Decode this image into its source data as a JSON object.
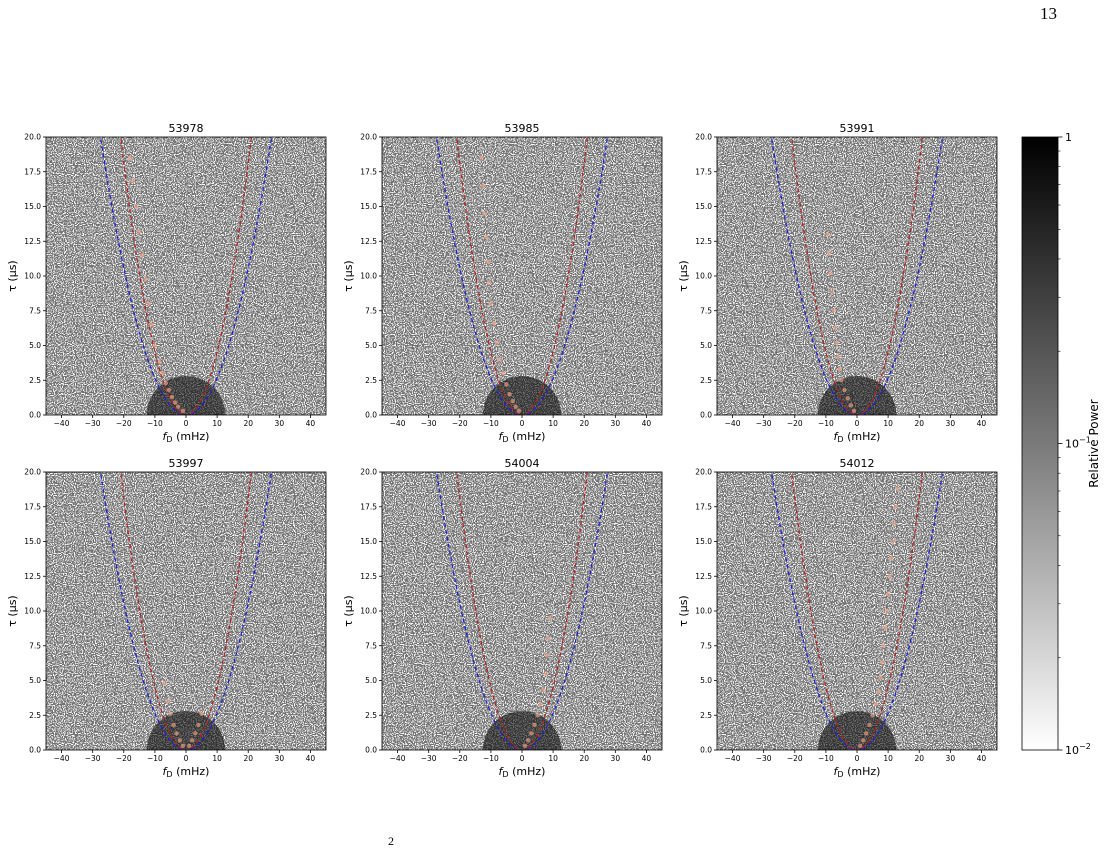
{
  "page": {
    "number": "13",
    "footer_fragment": "2"
  },
  "colors": {
    "background": "#ffffff",
    "ink": "#000000",
    "blue_curve": "#1f1fd6",
    "red_curve": "#b22222",
    "points": "#f4a582"
  },
  "chart_data": [
    {
      "type": "scatter",
      "title": "53978",
      "xlabel": "f_D (mHz)",
      "ylabel": "τ (μs)",
      "xlim": [
        -45,
        45
      ],
      "ylim": [
        0,
        20
      ],
      "xticks": [
        -40,
        -30,
        -20,
        -10,
        0,
        10,
        20,
        30,
        40
      ],
      "yticks": [
        "0.0",
        "2.5",
        "5.0",
        "7.5",
        "10.0",
        "12.5",
        "15.0",
        "17.5",
        "20.0"
      ],
      "curves": [
        {
          "style": "dashed",
          "color": "blue",
          "form": "parabola",
          "x_at_ymax": 27.5
        },
        {
          "style": "dashed",
          "color": "red",
          "form": "parabola",
          "x_at_ymax": 21
        }
      ],
      "points": {
        "x": [
          -1.0,
          -2.5,
          -3.5,
          -4.5,
          -5.5,
          -6.5,
          -7.5,
          -8.5,
          -10,
          -11,
          -12,
          -13,
          -14,
          -15,
          -16,
          -17,
          -18
        ],
        "y": [
          0.3,
          0.6,
          0.9,
          1.3,
          1.8,
          2.3,
          3.0,
          3.8,
          5.0,
          6.5,
          8.0,
          9.8,
          11.5,
          13.2,
          15.0,
          16.8,
          18.5
        ]
      }
    },
    {
      "type": "scatter",
      "title": "53985",
      "xlabel": "f_D (mHz)",
      "ylabel": "τ (μs)",
      "xlim": [
        -45,
        45
      ],
      "ylim": [
        0,
        20
      ],
      "xticks": [
        -40,
        -30,
        -20,
        -10,
        0,
        10,
        20,
        30,
        40
      ],
      "yticks": [
        "0.0",
        "2.5",
        "5.0",
        "7.5",
        "10.0",
        "12.5",
        "15.0",
        "17.5",
        "20.0"
      ],
      "curves": [
        {
          "style": "dashed",
          "color": "blue",
          "form": "parabola",
          "x_at_ymax": 27.5
        },
        {
          "style": "dashed",
          "color": "red",
          "form": "parabola",
          "x_at_ymax": 21
        }
      ],
      "points": {
        "x": [
          -1.0,
          -2.0,
          -3.0,
          -4.0,
          -5.0,
          -6.0,
          -7.0,
          -8.0,
          -9.0,
          -10.0,
          -10.5,
          -11.0,
          -11.5,
          -12.0,
          -12.5,
          -13.0
        ],
        "y": [
          0.3,
          0.6,
          1.0,
          1.5,
          2.2,
          3.0,
          4.0,
          5.2,
          6.6,
          8.0,
          9.5,
          11.0,
          12.8,
          14.5,
          16.5,
          18.5
        ]
      }
    },
    {
      "type": "scatter",
      "title": "53991",
      "xlabel": "f_D (mHz)",
      "ylabel": "τ (μs)",
      "xlim": [
        -45,
        45
      ],
      "ylim": [
        0,
        20
      ],
      "xticks": [
        -40,
        -30,
        -20,
        -10,
        0,
        10,
        20,
        30,
        40
      ],
      "yticks": [
        "0.0",
        "2.5",
        "5.0",
        "7.5",
        "10.0",
        "12.5",
        "15.0",
        "17.5",
        "20.0"
      ],
      "curves": [
        {
          "style": "dashed",
          "color": "blue",
          "form": "parabola",
          "x_at_ymax": 27.5
        },
        {
          "style": "dashed",
          "color": "red",
          "form": "parabola",
          "x_at_ymax": 21
        }
      ],
      "points": {
        "x": [
          -1.0,
          -2.0,
          -3.0,
          -4.0,
          -5.0,
          -5.5,
          -6.0,
          -6.5,
          -7.0,
          -7.5,
          -8.0,
          -8.5,
          -9.0,
          -9.5
        ],
        "y": [
          0.3,
          0.7,
          1.2,
          1.8,
          2.5,
          3.3,
          4.2,
          5.2,
          6.3,
          7.5,
          8.8,
          10.2,
          11.6,
          13.0
        ]
      }
    },
    {
      "type": "scatter",
      "title": "53997",
      "xlabel": "f_D (mHz)",
      "ylabel": "τ (μs)",
      "xlim": [
        -45,
        45
      ],
      "ylim": [
        0,
        20
      ],
      "xticks": [
        -40,
        -30,
        -20,
        -10,
        0,
        10,
        20,
        30,
        40
      ],
      "yticks": [
        "0.0",
        "2.5",
        "5.0",
        "7.5",
        "10.0",
        "12.5",
        "15.0",
        "17.5",
        "20.0"
      ],
      "curves": [
        {
          "style": "dashed",
          "color": "blue",
          "form": "parabola",
          "x_at_ymax": 27.5
        },
        {
          "style": "dashed",
          "color": "red",
          "form": "parabola",
          "x_at_ymax": 21
        }
      ],
      "points": {
        "x": [
          -1.0,
          -2.0,
          -3.0,
          -4.0,
          -5.0,
          -6.0,
          -7.0,
          1.0,
          2.0,
          3.0,
          4.0,
          5.0
        ],
        "y": [
          0.3,
          0.7,
          1.2,
          1.8,
          2.6,
          3.5,
          4.8,
          0.3,
          0.7,
          1.2,
          1.8,
          2.6
        ]
      }
    },
    {
      "type": "scatter",
      "title": "54004",
      "xlabel": "f_D (mHz)",
      "ylabel": "τ (μs)",
      "xlim": [
        -45,
        45
      ],
      "ylim": [
        0,
        20
      ],
      "xticks": [
        -40,
        -30,
        -20,
        -10,
        0,
        10,
        20,
        30,
        40
      ],
      "yticks": [
        "0.0",
        "2.5",
        "5.0",
        "7.5",
        "10.0",
        "12.5",
        "15.0",
        "17.5",
        "20.0"
      ],
      "curves": [
        {
          "style": "dashed",
          "color": "blue",
          "form": "parabola",
          "x_at_ymax": 27.5
        },
        {
          "style": "dashed",
          "color": "red",
          "form": "parabola",
          "x_at_ymax": 21
        }
      ],
      "points": {
        "x": [
          1.0,
          2.0,
          3.0,
          4.0,
          5.0,
          6.0,
          7.0,
          7.5,
          8.0,
          8.5,
          9.0
        ],
        "y": [
          0.3,
          0.7,
          1.2,
          1.8,
          2.5,
          3.3,
          4.3,
          5.5,
          6.8,
          8.0,
          9.5
        ]
      }
    },
    {
      "type": "scatter",
      "title": "54012",
      "xlabel": "f_D (mHz)",
      "ylabel": "τ (μs)",
      "xlim": [
        -45,
        45
      ],
      "ylim": [
        0,
        20
      ],
      "xticks": [
        -40,
        -30,
        -20,
        -10,
        0,
        10,
        20,
        30,
        40
      ],
      "yticks": [
        "0.0",
        "2.5",
        "5.0",
        "7.5",
        "10.0",
        "12.5",
        "15.0",
        "17.5",
        "20.0"
      ],
      "curves": [
        {
          "style": "dashed",
          "color": "blue",
          "form": "parabola",
          "x_at_ymax": 27.5
        },
        {
          "style": "dashed",
          "color": "red",
          "form": "parabola",
          "x_at_ymax": 21
        }
      ],
      "points": {
        "x": [
          1.0,
          2.0,
          3.0,
          4.0,
          5.0,
          6.0,
          7.0,
          7.5,
          8.0,
          8.5,
          9.0,
          9.5,
          10.0,
          10.5,
          11.0,
          11.5,
          12.0,
          12.5,
          13.0
        ],
        "y": [
          0.3,
          0.7,
          1.2,
          1.8,
          2.5,
          3.3,
          4.2,
          5.2,
          6.3,
          7.5,
          8.8,
          10.0,
          11.2,
          12.5,
          13.8,
          15.0,
          16.3,
          17.5,
          18.8
        ]
      }
    }
  ],
  "colorbar": {
    "label": "Relative Power",
    "scale": "log",
    "range": [
      0.01,
      1
    ],
    "ticks": [
      {
        "value": 1,
        "base": "1",
        "exp": ""
      },
      {
        "value": 0.1,
        "base": "10",
        "exp": "−1"
      },
      {
        "value": 0.01,
        "base": "10",
        "exp": "−2"
      }
    ]
  }
}
